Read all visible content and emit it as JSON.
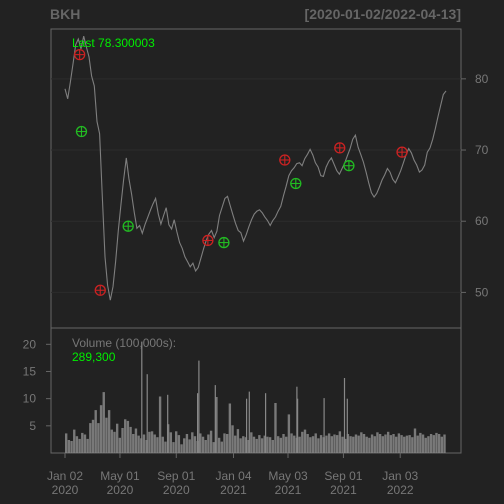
{
  "header": {
    "symbol": "BKH",
    "date_range": "[2020-01-02/2022-04-13]"
  },
  "colors": {
    "background": "#222222",
    "panel_border": "#666666",
    "grid": "#2c2c2c",
    "axis_text": "#777777",
    "price_line": "#7f7f7f",
    "volume_bar": "#888888",
    "accent_green": "#00ee00",
    "marker_red": "#cc2222",
    "marker_green": "#22bb22",
    "title_text": "#666666"
  },
  "chart_data": [
    {
      "type": "line",
      "panel": "price",
      "title": "",
      "last_label": "Last 78.300003",
      "ylim": [
        45,
        87
      ],
      "yticks": [
        50,
        60,
        70,
        80
      ],
      "ytick_labels": [
        "50",
        "60",
        "70",
        "80"
      ],
      "grid": true,
      "series": [
        {
          "values": [
            78.6,
            77.2,
            79.5,
            82.1,
            84.8,
            85.6,
            84.2,
            86.0,
            84.5,
            83.1,
            80.4,
            79.0,
            74.0,
            72.3,
            63.5,
            55.0,
            51.0,
            48.9,
            50.8,
            54.3,
            58.7,
            62.4,
            65.8,
            68.9,
            66.0,
            63.8,
            61.2,
            59.0,
            59.4,
            58.3,
            59.5,
            60.5,
            61.5,
            62.4,
            63.2,
            61.0,
            59.6,
            60.8,
            61.9,
            59.5,
            58.9,
            60.2,
            58.5,
            57.0,
            56.2,
            55.0,
            54.3,
            53.6,
            54.1,
            53.0,
            53.5,
            54.8,
            56.1,
            57.3,
            58.2,
            58.7,
            57.7,
            58.6,
            60.8,
            62.0,
            63.2,
            63.5,
            62.2,
            60.9,
            59.7,
            58.7,
            58.4,
            57.2,
            58.1,
            59.2,
            60.2,
            61.0,
            61.4,
            61.6,
            61.2,
            60.6,
            60.1,
            59.4,
            60.1,
            60.6,
            61.4,
            62.1,
            63.6,
            64.9,
            66.4,
            67.1,
            67.5,
            68.1,
            68.2,
            67.8,
            68.8,
            69.4,
            70.1,
            69.3,
            68.2,
            67.6,
            66.4,
            66.3,
            67.6,
            68.4,
            68.9,
            68.0,
            67.1,
            66.6,
            67.4,
            68.2,
            69.2,
            70.2,
            71.5,
            72.1,
            70.4,
            69.4,
            68.3,
            66.9,
            65.4,
            64.0,
            63.4,
            63.9,
            64.8,
            65.8,
            66.5,
            67.4,
            66.9,
            65.9,
            65.4,
            66.2,
            67.1,
            68.2,
            69.3,
            70.2,
            69.6,
            68.6,
            67.9,
            66.9,
            67.2,
            67.9,
            69.7,
            70.3,
            71.5,
            73.0,
            74.7,
            76.3,
            77.8,
            78.3
          ]
        }
      ],
      "buy_signals": [
        {
          "date": "2020-02-07",
          "value": 72.6
        },
        {
          "date": "2020-05-19",
          "value": 59.3
        },
        {
          "date": "2020-12-14",
          "value": 57.0
        },
        {
          "date": "2021-05-20",
          "value": 65.3
        },
        {
          "date": "2021-09-13",
          "value": 67.8
        }
      ],
      "sell_signals": [
        {
          "date": "2020-02-03",
          "value": 83.4
        },
        {
          "date": "2020-03-19",
          "value": 50.3
        },
        {
          "date": "2020-11-09",
          "value": 57.3
        },
        {
          "date": "2021-04-26",
          "value": 68.6
        },
        {
          "date": "2021-08-24",
          "value": 70.3
        },
        {
          "date": "2022-01-07",
          "value": 69.7
        }
      ]
    },
    {
      "type": "bar",
      "panel": "volume",
      "title": "Volume (100,000s):",
      "last_label": "289,300",
      "ylim": [
        0,
        23
      ],
      "yticks": [
        5,
        10,
        15,
        20
      ],
      "ytick_labels": [
        "5",
        "10",
        "15",
        "20"
      ],
      "grid": false,
      "values": [
        3.6,
        2.4,
        2.2,
        4.3,
        3.1,
        2.6,
        3.7,
        3.4,
        2.6,
        5.5,
        6.1,
        7.9,
        5.5,
        8.8,
        11.2,
        6.5,
        7.9,
        4.3,
        3.9,
        5.4,
        2.8,
        4.6,
        6.2,
        5.9,
        4.8,
        3.5,
        4.5,
        3.2,
        2.7,
        3.4,
        2.4,
        3.9,
        4.0,
        3.4,
        2.9,
        10.4,
        3.0,
        2.1,
        5.3,
        3.8,
        2.0,
        4.0,
        3.3,
        1.6,
        2.7,
        3.5,
        2.5,
        3.8,
        3.1,
        2.2,
        3.6,
        3.0,
        2.4,
        3.4,
        4.1,
        2.0,
        10.3,
        2.8,
        2.1,
        3.6,
        3.5,
        9.1,
        5.1,
        3.2,
        4.4,
        2.7,
        3.1,
        2.9,
        2.4,
        3.8,
        3.0,
        2.6,
        3.3,
        2.7,
        3.2,
        3.0,
        2.9,
        2.4,
        9.2,
        3.1,
        2.8,
        3.5,
        3.0,
        7.1,
        3.6,
        3.2,
        2.8,
        3.0,
        3.9,
        4.3,
        3.5,
        2.9,
        3.1,
        3.6,
        2.7,
        3.3,
        2.9,
        3.2,
        3.6,
        3.1,
        3.4,
        3.3,
        4.0,
        3.0,
        2.6,
        3.5,
        3.1,
        3.0,
        3.4,
        3.2,
        3.8,
        3.5,
        3.0,
        2.8,
        3.4,
        3.1,
        3.8,
        3.5,
        3.1,
        3.4,
        3.9,
        3.3,
        3.5,
        3.0,
        3.6,
        3.3,
        3.0,
        3.2,
        3.3,
        2.9,
        4.5,
        3.2,
        3.7,
        3.4,
        2.8,
        3.1,
        3.5,
        3.3,
        3.7,
        3.5,
        3.0,
        3.4
      ],
      "spikes": [
        {
          "x": 56,
          "value": 20.5
        },
        {
          "x": 60,
          "value": 14.5
        },
        {
          "x": 75,
          "value": 10.7
        },
        {
          "x": 97,
          "value": 11.0
        },
        {
          "x": 98,
          "value": 17.0
        },
        {
          "x": 110,
          "value": 12.5
        },
        {
          "x": 133,
          "value": 10.0
        },
        {
          "x": 135,
          "value": 11.3
        },
        {
          "x": 147,
          "value": 11.0
        },
        {
          "x": 170,
          "value": 12.2
        },
        {
          "x": 170.5,
          "value": 10.0
        },
        {
          "x": 190,
          "value": 10.1
        },
        {
          "x": 205,
          "value": 13.8
        },
        {
          "x": 207,
          "value": 10.0
        }
      ]
    }
  ],
  "x_axis": {
    "ticks": [
      {
        "label_line1": "Jan 02",
        "label_line2": "2020",
        "date": "2020-01-02"
      },
      {
        "label_line1": "May 01",
        "label_line2": "2020",
        "date": "2020-05-01"
      },
      {
        "label_line1": "Sep 01",
        "label_line2": "2020",
        "date": "2020-09-01"
      },
      {
        "label_line1": "Jan 04",
        "label_line2": "2021",
        "date": "2021-01-04"
      },
      {
        "label_line1": "May 03",
        "label_line2": "2021",
        "date": "2021-05-03"
      },
      {
        "label_line1": "Sep 01",
        "label_line2": "2021",
        "date": "2021-09-01"
      },
      {
        "label_line1": "Jan 03",
        "label_line2": "2022",
        "date": "2022-01-03"
      }
    ]
  }
}
